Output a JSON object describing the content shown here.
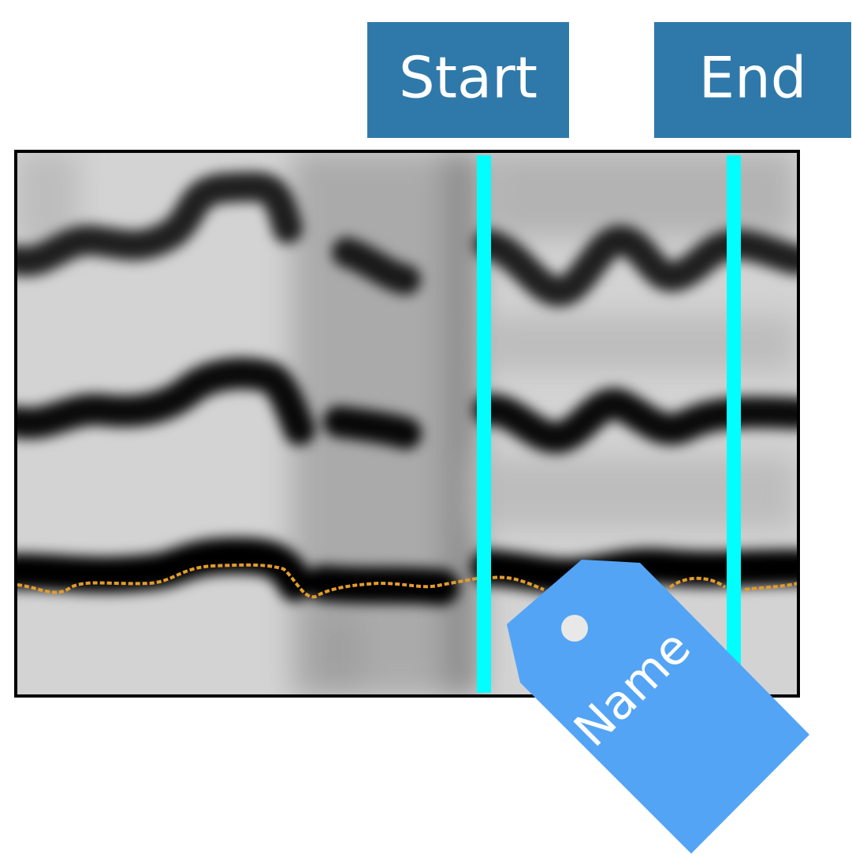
{
  "buttons": [
    "Start",
    "End"
  ],
  "tag": {
    "label": "Name"
  }
}
